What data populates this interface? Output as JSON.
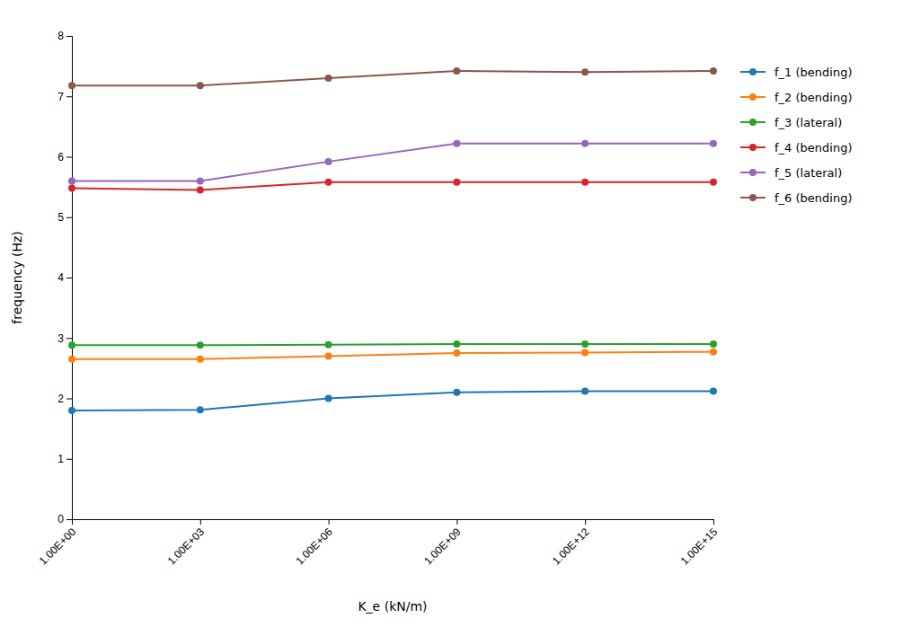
{
  "chart_data": {
    "type": "line",
    "xlabel": "K_e (kN/m)",
    "ylabel": "frequency (Hz)",
    "x": [
      1,
      1000,
      1000000,
      1000000000,
      1000000000000,
      1000000000000000
    ],
    "series": [
      {
        "name": "f_1 (bending)",
        "values": [
          1.8,
          1.81,
          2.0,
          2.1,
          2.12,
          2.12
        ]
      },
      {
        "name": "f_2 (bending)",
        "values": [
          2.65,
          2.65,
          2.7,
          2.75,
          2.76,
          2.77
        ]
      },
      {
        "name": "f_3 (lateral)",
        "values": [
          2.88,
          2.88,
          2.89,
          2.9,
          2.9,
          2.9
        ]
      },
      {
        "name": "f_4 (bending)",
        "values": [
          5.48,
          5.45,
          5.58,
          5.58,
          5.58,
          5.58
        ]
      },
      {
        "name": "f_5 (lateral)",
        "values": [
          5.6,
          5.6,
          5.92,
          6.22,
          6.22,
          6.22
        ]
      },
      {
        "name": "f_6 (bending)",
        "values": [
          7.18,
          7.18,
          7.3,
          7.42,
          7.4,
          7.42
        ]
      }
    ],
    "log": "x",
    "xlim": [
      1,
      1000000000000000
    ],
    "xticks": [
      {
        "value": 1,
        "label": "1.00E+00"
      },
      {
        "value": 1000,
        "label": "1.00E+03"
      },
      {
        "value": 1000000,
        "label": "1.00E+06"
      },
      {
        "value": 1000000000,
        "label": "1.00E+09"
      },
      {
        "value": 1000000000000,
        "label": "1.00E+12"
      },
      {
        "value": 1000000000000000,
        "label": "1.00E+15"
      }
    ],
    "ylim": [
      0,
      8
    ],
    "yticks": [
      0,
      1,
      2,
      3,
      4,
      5,
      6,
      7,
      8
    ],
    "marker": "circle",
    "grid": false,
    "legend": "right"
  }
}
